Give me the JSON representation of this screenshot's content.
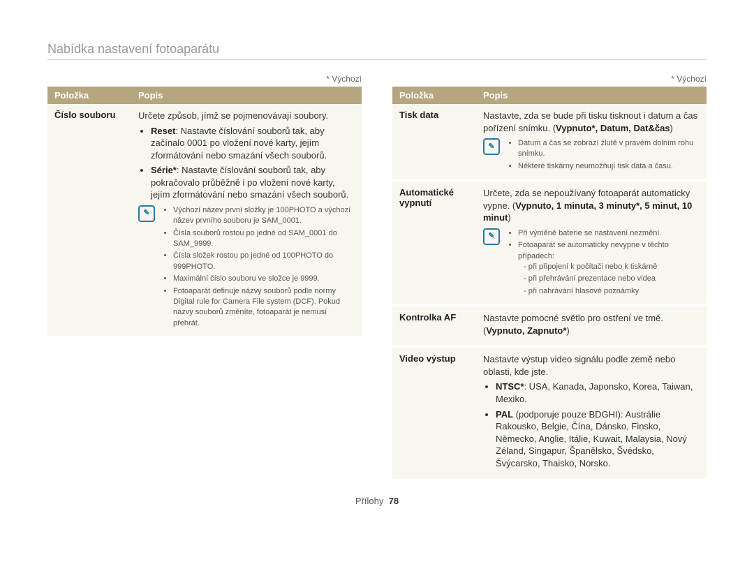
{
  "title": "Nabídka nastavení fotoaparátu",
  "default_marker": "* Výchozí",
  "header": {
    "item": "Položka",
    "desc": "Popis"
  },
  "footer": {
    "section": "Přílohy",
    "page": "78"
  },
  "note_icon_glyph": "✎",
  "left": {
    "row1": {
      "item": "Číslo souboru",
      "intro": "Určete způsob, jímž se pojmenovávají soubory.",
      "bullet1_label": "Reset",
      "bullet1_text": ": Nastavte číslování souborů tak, aby začínalo 0001 po vložení nové karty, jejím zformátování nebo smazání všech souborů.",
      "bullet2_label": "Série*",
      "bullet2_text": ": Nastavte číslování souborů tak, aby pokračovalo průběžně i po vložení nové karty, jejím zformátování nebo smazání všech souborů.",
      "note1": "Výchozí název první složky je 100PHOTO a výchozí název prvního souboru je SAM_0001.",
      "note2": "Čísla souborů rostou po jedné od SAM_0001 do SAM_9999.",
      "note3": "Čísla složek rostou po jedné od 100PHOTO do 999PHOTO.",
      "note4": "Maximální číslo souboru ve složce je 9999.",
      "note5": "Fotoaparát definuje názvy souborů podle normy Digital rule for Camera File system (DCF). Pokud názvy souborů změníte, fotoaparát je nemusí přehrát."
    }
  },
  "right": {
    "row1": {
      "item": "Tisk data",
      "intro_a": "Nastavte, zda se bude při tisku tisknout i datum a čas pořízení snímku. (",
      "opts": "Vypnuto*, Datum, Dat&čas",
      "intro_b": ")",
      "note1": "Datum a čas se zobrazí žlutě v pravém dolním rohu snímku.",
      "note2": "Některé tiskárny neumožňují tisk data a času."
    },
    "row2": {
      "item": "Automatické vypnutí",
      "intro_a": "Určete, zda se nepoužívaný fotoaparát automaticky vypne. (",
      "opts": "Vypnuto, 1 minuta, 3 minuty*, 5 minut, 10 minut",
      "intro_b": ")",
      "note1": "Při výměně baterie se nastavení nezmění.",
      "note2": "Fotoaparát se automaticky nevypne v těchto případech:",
      "sub1": "při připojení k počítači nebo k tiskárně",
      "sub2": "při přehrávání prezentace nebo videa",
      "sub3": "při nahrávání hlasové poznámky"
    },
    "row3": {
      "item": "Kontrolka AF",
      "intro_a": "Nastavte pomocné světlo pro ostření ve tmě. (",
      "opts": "Vypnuto, Zapnuto*",
      "intro_b": ")"
    },
    "row4": {
      "item": "Video výstup",
      "intro": "Nastavte výstup video signálu podle země nebo oblasti, kde jste.",
      "bullet1_label": "NTSC*",
      "bullet1_text": ": USA, Kanada, Japonsko, Korea, Taiwan, Mexiko.",
      "bullet2_label": "PAL",
      "bullet2_text": " (podporuje pouze BDGHI): Austrálie Rakousko, Belgie, Čína, Dánsko, Finsko, Německo, Anglie, Itálie, Kuwait, Malaysia, Nový Zéland, Singapur, Španělsko, Švédsko, Švýcarsko, Thaisko, Norsko."
    }
  }
}
